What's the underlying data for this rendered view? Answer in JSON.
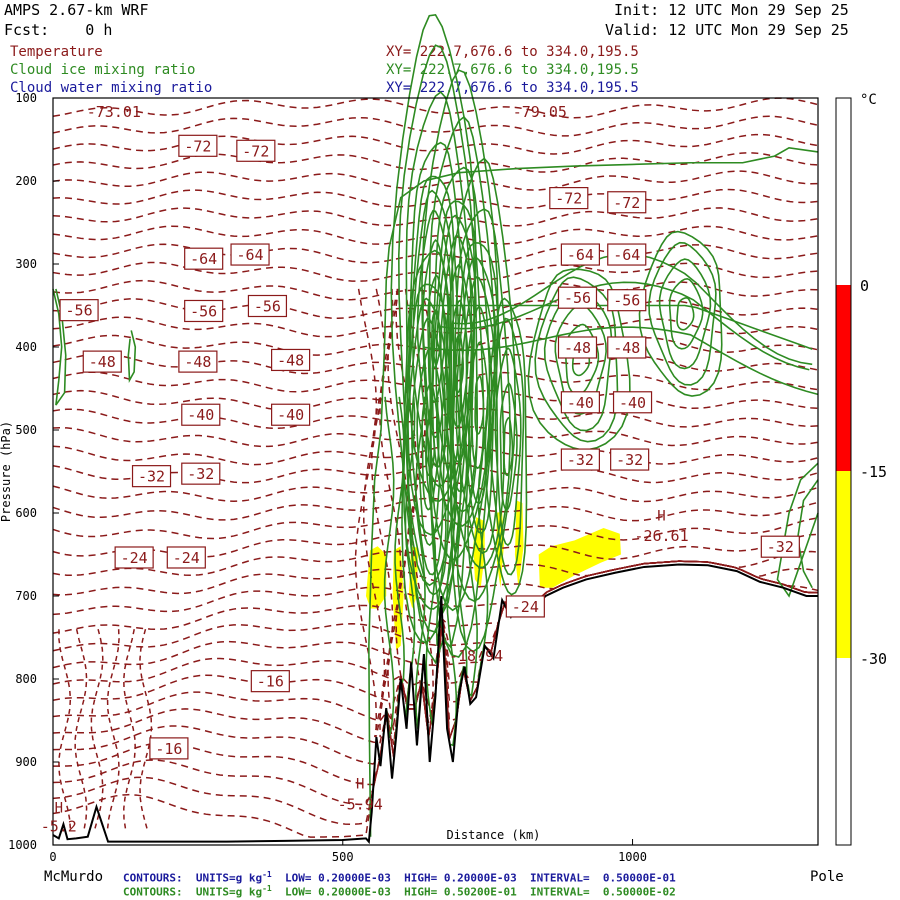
{
  "header": {
    "model": "AMPS 2.67-km WRF",
    "init": "Init: 12 UTC Mon 29 Sep 25",
    "fcst": "Fcst:    0 h",
    "valid": "Valid: 12 UTC Mon 29 Sep 25"
  },
  "fields": [
    {
      "name": "Temperature",
      "xy": "XY= 222.7,676.6 to 334.0,195.5",
      "color": "#8b1a1a"
    },
    {
      "name": "Cloud ice mixing ratio",
      "xy": "XY= 222.7,676.6 to 334.0,195.5",
      "color": "#2e8b22"
    },
    {
      "name": "Cloud water mixing ratio",
      "xy": "XY= 222.7,676.6 to 334.0,195.5",
      "color": "#1a1a9c"
    }
  ],
  "footer": {
    "line1": "CONTOURS:  UNITS=g kg",
    "line1_rest": "  LOW= 0.20000E-03  HIGH= 0.20000E-03  INTERVAL=  0.50000E-01",
    "line2": "CONTOURS:  UNITS=g kg",
    "line2_rest": "  LOW= 0.20000E-03  HIGH= 0.50200E-01  INTERVAL=  0.50000E-02",
    "sup": "-1"
  },
  "chart_data": {
    "type": "contour",
    "ylabel": "Pressure (hPa)",
    "xlabel": "Distance (km)",
    "x_endpoints": {
      "left": "McMurdo",
      "right": "Pole"
    },
    "xlim": [
      0,
      1320
    ],
    "ylim": [
      1000,
      100
    ],
    "xticks": [
      0,
      500,
      1000
    ],
    "yticks": [
      100,
      200,
      300,
      400,
      500,
      600,
      700,
      800,
      900,
      1000
    ],
    "temperature_labels": [
      {
        "x": 250,
        "p": 157,
        "v": "-72"
      },
      {
        "x": 350,
        "p": 163,
        "v": "-72"
      },
      {
        "x": 890,
        "p": 220,
        "v": "-72"
      },
      {
        "x": 990,
        "p": 225,
        "v": "-72"
      },
      {
        "x": 260,
        "p": 293,
        "v": "-64"
      },
      {
        "x": 340,
        "p": 288,
        "v": "-64"
      },
      {
        "x": 910,
        "p": 288,
        "v": "-64"
      },
      {
        "x": 990,
        "p": 288,
        "v": "-64"
      },
      {
        "x": 45,
        "p": 355,
        "v": "-56"
      },
      {
        "x": 260,
        "p": 356,
        "v": "-56"
      },
      {
        "x": 370,
        "p": 350,
        "v": "-56"
      },
      {
        "x": 905,
        "p": 340,
        "v": "-56"
      },
      {
        "x": 990,
        "p": 343,
        "v": "-56"
      },
      {
        "x": 85,
        "p": 417,
        "v": "-48"
      },
      {
        "x": 250,
        "p": 417,
        "v": "-48"
      },
      {
        "x": 410,
        "p": 415,
        "v": "-48"
      },
      {
        "x": 905,
        "p": 400,
        "v": "-48"
      },
      {
        "x": 990,
        "p": 400,
        "v": "-48"
      },
      {
        "x": 255,
        "p": 481,
        "v": "-40"
      },
      {
        "x": 410,
        "p": 481,
        "v": "-40"
      },
      {
        "x": 910,
        "p": 466,
        "v": "-40"
      },
      {
        "x": 1000,
        "p": 466,
        "v": "-40"
      },
      {
        "x": 170,
        "p": 555,
        "v": "-32"
      },
      {
        "x": 255,
        "p": 552,
        "v": "-32"
      },
      {
        "x": 910,
        "p": 535,
        "v": "-32"
      },
      {
        "x": 995,
        "p": 535,
        "v": "-32"
      },
      {
        "x": 1255,
        "p": 640,
        "v": "-32"
      },
      {
        "x": 140,
        "p": 653,
        "v": "-24"
      },
      {
        "x": 230,
        "p": 653,
        "v": "-24"
      },
      {
        "x": 815,
        "p": 712,
        "v": "-24"
      },
      {
        "x": 375,
        "p": 802,
        "v": "-16"
      },
      {
        "x": 200,
        "p": 883,
        "v": "-16"
      }
    ],
    "extrema": [
      {
        "x": 105,
        "p": 117,
        "v": "-73.01"
      },
      {
        "x": 840,
        "p": 117,
        "v": "-79.05"
      },
      {
        "x": 1050,
        "p": 628,
        "v": "-26.61"
      },
      {
        "x": 730,
        "p": 772,
        "v": "-18.94"
      },
      {
        "x": 530,
        "p": 951,
        "v": "-5.94"
      },
      {
        "x": 10,
        "p": 978,
        "v": "-5.2"
      }
    ],
    "highs": [
      {
        "x": 1050,
        "p": 603
      },
      {
        "x": 530,
        "p": 926
      },
      {
        "x": 10,
        "p": 955
      }
    ],
    "legend": {
      "unit": "°C",
      "ticks": [
        "0",
        "-15",
        "-30"
      ],
      "colors": [
        "#ffffff",
        "#ff0000",
        "#ffff00",
        "#ffffff"
      ]
    },
    "terrain": [
      [
        0,
        988
      ],
      [
        10,
        992
      ],
      [
        18,
        975
      ],
      [
        25,
        993
      ],
      [
        40,
        992
      ],
      [
        60,
        990
      ],
      [
        75,
        954
      ],
      [
        85,
        975
      ],
      [
        95,
        996
      ],
      [
        200,
        996
      ],
      [
        300,
        996
      ],
      [
        400,
        995
      ],
      [
        500,
        994
      ],
      [
        540,
        992
      ],
      [
        545,
        996
      ],
      [
        550,
        960
      ],
      [
        558,
        870
      ],
      [
        565,
        905
      ],
      [
        575,
        835
      ],
      [
        585,
        920
      ],
      [
        592,
        870
      ],
      [
        600,
        800
      ],
      [
        610,
        860
      ],
      [
        618,
        780
      ],
      [
        628,
        880
      ],
      [
        640,
        770
      ],
      [
        650,
        900
      ],
      [
        660,
        820
      ],
      [
        670,
        700
      ],
      [
        680,
        860
      ],
      [
        690,
        900
      ],
      [
        700,
        820
      ],
      [
        710,
        785
      ],
      [
        720,
        830
      ],
      [
        730,
        822
      ],
      [
        745,
        760
      ],
      [
        760,
        775
      ],
      [
        775,
        705
      ],
      [
        790,
        725
      ],
      [
        800,
        710
      ],
      [
        815,
        720
      ],
      [
        835,
        710
      ],
      [
        850,
        700
      ],
      [
        880,
        690
      ],
      [
        920,
        680
      ],
      [
        970,
        672
      ],
      [
        1020,
        665
      ],
      [
        1080,
        662
      ],
      [
        1130,
        663
      ],
      [
        1180,
        670
      ],
      [
        1220,
        683
      ],
      [
        1260,
        690
      ],
      [
        1300,
        700
      ],
      [
        1320,
        700
      ]
    ]
  }
}
